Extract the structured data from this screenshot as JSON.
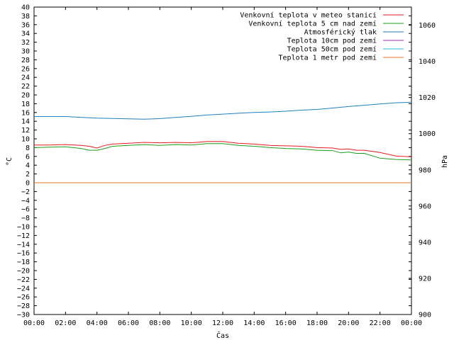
{
  "chart_data": {
    "type": "line",
    "xlabel": "Čas",
    "ylabel": "°C",
    "y2label": "hPa",
    "x_ticks": [
      "00:00",
      "02:00",
      "04:00",
      "06:00",
      "08:00",
      "10:00",
      "12:00",
      "14:00",
      "16:00",
      "18:00",
      "20:00",
      "22:00",
      "00:00"
    ],
    "x_hours": [
      0,
      24
    ],
    "ylim": [
      -30,
      40
    ],
    "y_tick_step": 2,
    "y2lim": [
      900,
      1070
    ],
    "y2_ticks": [
      900,
      920,
      940,
      960,
      980,
      1000,
      1020,
      1040,
      1060
    ],
    "grid": false,
    "legend_position": "top-right",
    "series": [
      {
        "name": "Venkovní teplota v meteo stanici",
        "color": "#e41a1c",
        "axis": "left",
        "x": [
          0,
          1,
          2,
          3,
          3.5,
          4,
          4.5,
          5,
          6,
          7,
          8,
          9,
          10,
          11,
          12,
          13,
          14,
          15,
          16,
          17,
          18,
          19,
          19.5,
          20,
          20.5,
          21,
          22,
          23,
          24
        ],
        "values": [
          8.6,
          8.6,
          8.7,
          8.5,
          8.3,
          7.9,
          8.5,
          8.8,
          9.0,
          9.2,
          9.1,
          9.2,
          9.1,
          9.4,
          9.4,
          9.0,
          8.8,
          8.5,
          8.4,
          8.3,
          8.0,
          7.9,
          7.6,
          7.7,
          7.4,
          7.4,
          6.9,
          6.1,
          5.9
        ]
      },
      {
        "name": "Venkovní teplota 5 cm nad zemí",
        "color": "#1a9e1a",
        "axis": "left",
        "x": [
          0,
          1,
          2,
          3,
          3.5,
          4,
          4.5,
          5,
          6,
          7,
          8,
          9,
          10,
          11,
          12,
          13,
          14,
          15,
          16,
          17,
          18,
          19,
          19.5,
          20,
          20.5,
          21,
          22,
          23,
          24
        ],
        "values": [
          8.0,
          8.1,
          8.2,
          7.8,
          7.4,
          7.4,
          7.8,
          8.3,
          8.5,
          8.7,
          8.5,
          8.7,
          8.6,
          8.9,
          8.9,
          8.5,
          8.3,
          8.0,
          7.8,
          7.7,
          7.4,
          7.3,
          6.8,
          7.0,
          6.7,
          6.7,
          5.6,
          5.3,
          5.2
        ]
      },
      {
        "name": "Atmosférický tlak",
        "color": "#1f7fc0",
        "axis": "right",
        "x": [
          0,
          2,
          4,
          5,
          6,
          7,
          8,
          9,
          10,
          11,
          12,
          13,
          14,
          15,
          16,
          17,
          18,
          19,
          20,
          21,
          22,
          23,
          24
        ],
        "values": [
          1009.5,
          1009.5,
          1008.6,
          1008.4,
          1008.2,
          1008.0,
          1008.3,
          1009.0,
          1009.6,
          1010.3,
          1010.8,
          1011.3,
          1011.7,
          1012.0,
          1012.4,
          1013.0,
          1013.4,
          1014.2,
          1015.0,
          1015.7,
          1016.4,
          1017.1,
          1017.4
        ]
      },
      {
        "name": "Teplota 10cm pod zemí",
        "color": "#9932a8",
        "axis": "left",
        "x": [],
        "values": []
      },
      {
        "name": "Teplota 50cm pod zemí",
        "color": "#22b8e8",
        "axis": "left",
        "x": [],
        "values": []
      },
      {
        "name": "Teplota 1 metr pod zemí",
        "color": "#e8702a",
        "axis": "left",
        "x": [
          0,
          24
        ],
        "values": [
          0,
          0
        ]
      }
    ]
  }
}
